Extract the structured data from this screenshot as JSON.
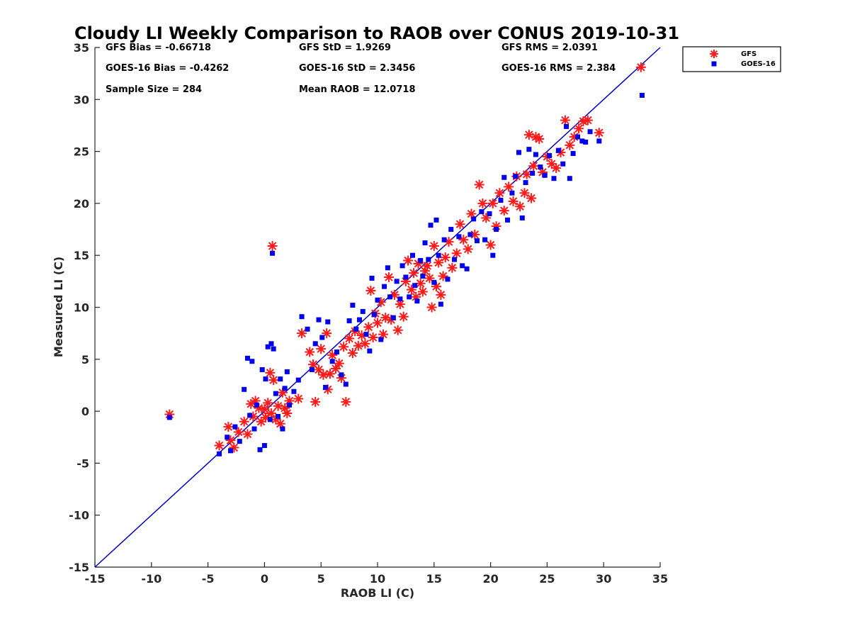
{
  "chart_data": {
    "type": "scatter",
    "title": "Cloudy LI Weekly Comparison to RAOB over CONUS 2019-10-31",
    "xlabel": "RAOB LI (C)",
    "ylabel": "Measured LI (C)",
    "xlim": [
      -15,
      35
    ],
    "ylim": [
      -15,
      35
    ],
    "xticks": [
      -15,
      -10,
      -5,
      0,
      5,
      10,
      15,
      20,
      25,
      30,
      35
    ],
    "yticks": [
      -15,
      -10,
      -5,
      0,
      5,
      10,
      15,
      20,
      25,
      30,
      35
    ],
    "grid": false,
    "legend_position": "top-right outside",
    "reference_line": {
      "from": [
        -15,
        -15
      ],
      "to": [
        35,
        35
      ],
      "color": "#0000cc"
    },
    "stats": {
      "gfs_bias": "GFS Bias = -0.66718",
      "goes_bias": "GOES-16 Bias = -0.4262",
      "sample_size": "Sample Size = 284",
      "gfs_std": "GFS StD = 1.9269",
      "goes_std": "GOES-16 StD = 2.3456",
      "mean_raob": "Mean RAOB = 12.0718",
      "gfs_rms": "GFS RMS = 2.0391",
      "goes_rms": "GOES-16 RMS = 2.384"
    },
    "series": [
      {
        "name": "GFS",
        "marker": "asterisk",
        "color": "#ff1a1a",
        "points": [
          [
            -8.4,
            -0.3
          ],
          [
            -4.0,
            -3.3
          ],
          [
            -3.2,
            -1.5
          ],
          [
            -3.0,
            -2.8
          ],
          [
            -2.7,
            -3.5
          ],
          [
            -2.3,
            -2.0
          ],
          [
            -1.8,
            -1.0
          ],
          [
            -1.5,
            -2.2
          ],
          [
            -1.2,
            0.7
          ],
          [
            -1.0,
            -0.5
          ],
          [
            -0.8,
            1.0
          ],
          [
            -0.5,
            0.3
          ],
          [
            -0.3,
            -1.0
          ],
          [
            0.0,
            0.2
          ],
          [
            0.1,
            -0.6
          ],
          [
            0.3,
            0.8
          ],
          [
            0.5,
            3.7
          ],
          [
            0.6,
            -0.2
          ],
          [
            0.7,
            15.9
          ],
          [
            0.8,
            3.0
          ],
          [
            1.0,
            -0.8
          ],
          [
            1.2,
            0.5
          ],
          [
            1.4,
            -1.2
          ],
          [
            1.6,
            1.8
          ],
          [
            1.8,
            0.3
          ],
          [
            2.0,
            -0.2
          ],
          [
            2.2,
            1.0
          ],
          [
            3.0,
            1.2
          ],
          [
            3.3,
            7.5
          ],
          [
            4.0,
            5.7
          ],
          [
            4.3,
            4.5
          ],
          [
            4.5,
            0.9
          ],
          [
            4.8,
            4.0
          ],
          [
            5.0,
            6.0
          ],
          [
            5.2,
            3.5
          ],
          [
            5.5,
            7.5
          ],
          [
            5.6,
            2.1
          ],
          [
            5.8,
            3.6
          ],
          [
            6.0,
            5.4
          ],
          [
            6.3,
            4.1
          ],
          [
            6.6,
            4.6
          ],
          [
            6.8,
            3.2
          ],
          [
            7.0,
            6.2
          ],
          [
            7.2,
            0.9
          ],
          [
            7.5,
            7.0
          ],
          [
            7.8,
            5.6
          ],
          [
            8.0,
            7.7
          ],
          [
            8.3,
            6.3
          ],
          [
            8.6,
            7.3
          ],
          [
            8.9,
            6.5
          ],
          [
            9.2,
            8.1
          ],
          [
            9.4,
            11.6
          ],
          [
            9.6,
            7.1
          ],
          [
            9.8,
            9.4
          ],
          [
            10.0,
            8.5
          ],
          [
            10.3,
            10.5
          ],
          [
            10.5,
            7.4
          ],
          [
            10.7,
            9.0
          ],
          [
            11.0,
            12.9
          ],
          [
            11.2,
            8.8
          ],
          [
            11.5,
            11.2
          ],
          [
            11.8,
            7.8
          ],
          [
            12.0,
            10.3
          ],
          [
            12.3,
            9.1
          ],
          [
            12.5,
            12.5
          ],
          [
            12.7,
            14.5
          ],
          [
            13.0,
            11.7
          ],
          [
            13.2,
            13.3
          ],
          [
            13.4,
            11.0
          ],
          [
            13.6,
            14.2
          ],
          [
            13.8,
            12.3
          ],
          [
            14.0,
            11.5
          ],
          [
            14.2,
            13.5
          ],
          [
            14.4,
            14.0
          ],
          [
            14.6,
            12.8
          ],
          [
            14.8,
            10.0
          ],
          [
            15.0,
            15.9
          ],
          [
            15.2,
            12.0
          ],
          [
            15.4,
            14.3
          ],
          [
            15.6,
            11.2
          ],
          [
            15.8,
            13.0
          ],
          [
            16.0,
            14.8
          ],
          [
            16.3,
            16.3
          ],
          [
            16.6,
            13.8
          ],
          [
            17.0,
            15.2
          ],
          [
            17.3,
            18.0
          ],
          [
            17.6,
            16.5
          ],
          [
            18.0,
            15.6
          ],
          [
            18.3,
            19.0
          ],
          [
            18.6,
            17.0
          ],
          [
            19.0,
            21.8
          ],
          [
            19.3,
            20.0
          ],
          [
            19.6,
            18.6
          ],
          [
            20.0,
            16.0
          ],
          [
            20.2,
            20.0
          ],
          [
            20.5,
            17.8
          ],
          [
            20.8,
            21.0
          ],
          [
            21.2,
            19.3
          ],
          [
            21.6,
            21.6
          ],
          [
            22.0,
            20.2
          ],
          [
            22.3,
            22.6
          ],
          [
            22.6,
            19.7
          ],
          [
            23.0,
            21.0
          ],
          [
            23.2,
            22.8
          ],
          [
            23.4,
            26.6
          ],
          [
            23.6,
            20.5
          ],
          [
            23.8,
            23.6
          ],
          [
            24.0,
            26.4
          ],
          [
            24.3,
            26.2
          ],
          [
            24.6,
            23.0
          ],
          [
            25.0,
            24.5
          ],
          [
            25.4,
            23.8
          ],
          [
            25.8,
            23.4
          ],
          [
            26.2,
            24.9
          ],
          [
            26.6,
            28.0
          ],
          [
            27.0,
            25.6
          ],
          [
            27.4,
            26.4
          ],
          [
            27.8,
            27.2
          ],
          [
            28.2,
            27.9
          ],
          [
            28.6,
            28.0
          ],
          [
            29.6,
            26.8
          ],
          [
            33.3,
            33.1
          ]
        ]
      },
      {
        "name": "GOES-16",
        "marker": "square",
        "color": "#0000ee",
        "points": [
          [
            -8.4,
            -0.6
          ],
          [
            -4.0,
            -4.1
          ],
          [
            -3.3,
            -2.5
          ],
          [
            -3.0,
            -3.8
          ],
          [
            -2.6,
            -1.5
          ],
          [
            -2.2,
            -2.9
          ],
          [
            -1.8,
            2.1
          ],
          [
            -1.5,
            5.1
          ],
          [
            -1.3,
            -0.4
          ],
          [
            -1.1,
            4.8
          ],
          [
            -0.9,
            -1.7
          ],
          [
            -0.7,
            0.6
          ],
          [
            -0.4,
            -3.7
          ],
          [
            -0.2,
            4.0
          ],
          [
            0.0,
            -3.3
          ],
          [
            0.1,
            3.1
          ],
          [
            0.3,
            6.2
          ],
          [
            0.5,
            -0.8
          ],
          [
            0.6,
            6.5
          ],
          [
            0.7,
            15.2
          ],
          [
            0.8,
            6.0
          ],
          [
            1.0,
            1.7
          ],
          [
            1.2,
            -0.5
          ],
          [
            1.4,
            3.1
          ],
          [
            1.6,
            -1.7
          ],
          [
            1.8,
            2.2
          ],
          [
            2.0,
            3.8
          ],
          [
            2.2,
            0.6
          ],
          [
            2.6,
            1.9
          ],
          [
            3.0,
            3.0
          ],
          [
            3.3,
            9.1
          ],
          [
            3.8,
            7.9
          ],
          [
            4.2,
            4.0
          ],
          [
            4.5,
            6.5
          ],
          [
            4.8,
            8.8
          ],
          [
            5.1,
            7.1
          ],
          [
            5.4,
            2.3
          ],
          [
            5.6,
            8.6
          ],
          [
            6.0,
            4.8
          ],
          [
            6.4,
            5.7
          ],
          [
            6.8,
            3.5
          ],
          [
            7.2,
            2.6
          ],
          [
            7.5,
            8.7
          ],
          [
            7.8,
            10.2
          ],
          [
            8.1,
            7.9
          ],
          [
            8.4,
            8.8
          ],
          [
            8.7,
            9.6
          ],
          [
            9.0,
            7.4
          ],
          [
            9.3,
            5.8
          ],
          [
            9.5,
            12.8
          ],
          [
            9.7,
            9.3
          ],
          [
            10.0,
            10.7
          ],
          [
            10.3,
            6.9
          ],
          [
            10.6,
            12.0
          ],
          [
            10.9,
            13.8
          ],
          [
            11.1,
            11.0
          ],
          [
            11.4,
            9.0
          ],
          [
            11.7,
            12.5
          ],
          [
            12.0,
            10.8
          ],
          [
            12.2,
            14.0
          ],
          [
            12.5,
            12.9
          ],
          [
            12.8,
            11.0
          ],
          [
            13.1,
            15.0
          ],
          [
            13.3,
            12.1
          ],
          [
            13.5,
            10.6
          ],
          [
            13.8,
            14.5
          ],
          [
            14.0,
            13.0
          ],
          [
            14.2,
            16.2
          ],
          [
            14.5,
            14.6
          ],
          [
            14.7,
            17.9
          ],
          [
            15.0,
            12.4
          ],
          [
            15.2,
            18.4
          ],
          [
            15.4,
            15.0
          ],
          [
            15.6,
            10.3
          ],
          [
            15.9,
            16.5
          ],
          [
            16.2,
            12.7
          ],
          [
            16.5,
            17.5
          ],
          [
            16.8,
            14.6
          ],
          [
            17.2,
            16.8
          ],
          [
            17.5,
            14.0
          ],
          [
            17.9,
            13.7
          ],
          [
            18.2,
            17.0
          ],
          [
            18.5,
            18.5
          ],
          [
            18.8,
            16.4
          ],
          [
            19.2,
            19.2
          ],
          [
            19.5,
            16.5
          ],
          [
            19.9,
            19.0
          ],
          [
            20.2,
            15.0
          ],
          [
            20.5,
            17.5
          ],
          [
            20.9,
            20.3
          ],
          [
            21.2,
            22.5
          ],
          [
            21.5,
            18.4
          ],
          [
            21.9,
            21.0
          ],
          [
            22.2,
            22.6
          ],
          [
            22.5,
            24.9
          ],
          [
            22.8,
            18.6
          ],
          [
            23.1,
            22.0
          ],
          [
            23.4,
            25.2
          ],
          [
            23.7,
            22.9
          ],
          [
            24.0,
            24.7
          ],
          [
            24.4,
            23.5
          ],
          [
            24.8,
            22.7
          ],
          [
            25.2,
            24.6
          ],
          [
            25.6,
            22.4
          ],
          [
            26.0,
            25.1
          ],
          [
            26.4,
            23.8
          ],
          [
            26.7,
            27.4
          ],
          [
            27.0,
            22.4
          ],
          [
            27.3,
            24.8
          ],
          [
            27.7,
            26.4
          ],
          [
            28.1,
            26.0
          ],
          [
            28.4,
            25.9
          ],
          [
            28.8,
            26.9
          ],
          [
            29.6,
            26.0
          ],
          [
            33.4,
            30.4
          ]
        ]
      }
    ]
  }
}
